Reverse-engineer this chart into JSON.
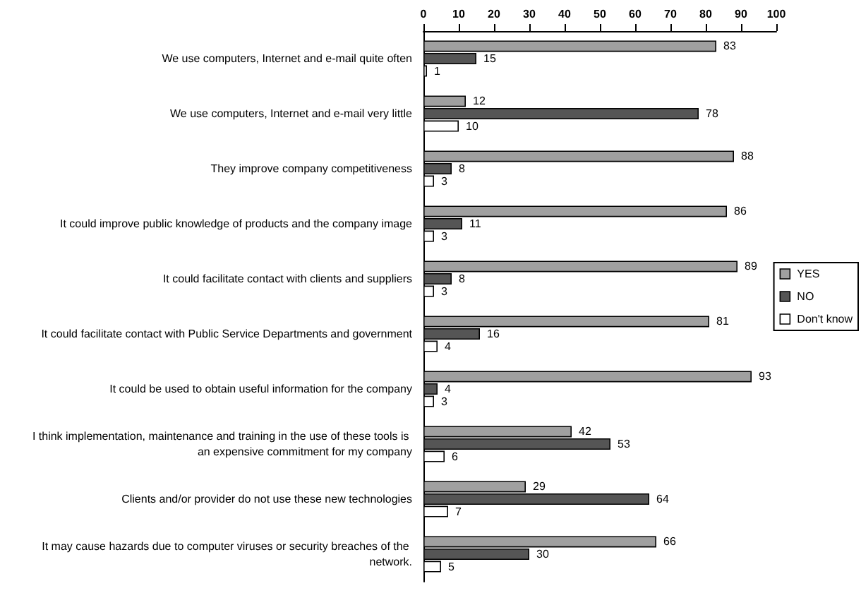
{
  "chart_data": {
    "type": "bar",
    "orientation": "horizontal",
    "categories": [
      "We use computers, Internet and e-mail quite often",
      "We use computers, Internet and e-mail very little",
      "They improve company competitiveness",
      "It could improve public knowledge of products and the company image",
      "It could facilitate contact with clients and suppliers",
      "It could facilitate contact with Public Service Departments and government",
      "It could be used to obtain useful information for the company",
      "I think implementation, maintenance and training in the use of these tools is an expensive commitment for my company",
      "Clients and/or provider do not use these new technologies",
      "It may cause hazards due to computer viruses or security breaches of the network."
    ],
    "series": [
      {
        "name": "YES",
        "color": "#a0a0a0",
        "values": [
          83,
          12,
          88,
          86,
          89,
          81,
          93,
          42,
          29,
          66
        ]
      },
      {
        "name": "NO",
        "color": "#555555",
        "values": [
          15,
          78,
          8,
          11,
          8,
          16,
          4,
          53,
          64,
          30
        ]
      },
      {
        "name": "Don't know",
        "color": "#ffffff",
        "values": [
          1,
          10,
          3,
          3,
          3,
          4,
          3,
          6,
          7,
          5
        ]
      }
    ],
    "xlim": [
      0,
      100
    ],
    "xticks": [
      0,
      10,
      20,
      30,
      40,
      50,
      60,
      70,
      80,
      90,
      100
    ],
    "data_labels": true,
    "grid": false,
    "legend": "right"
  }
}
